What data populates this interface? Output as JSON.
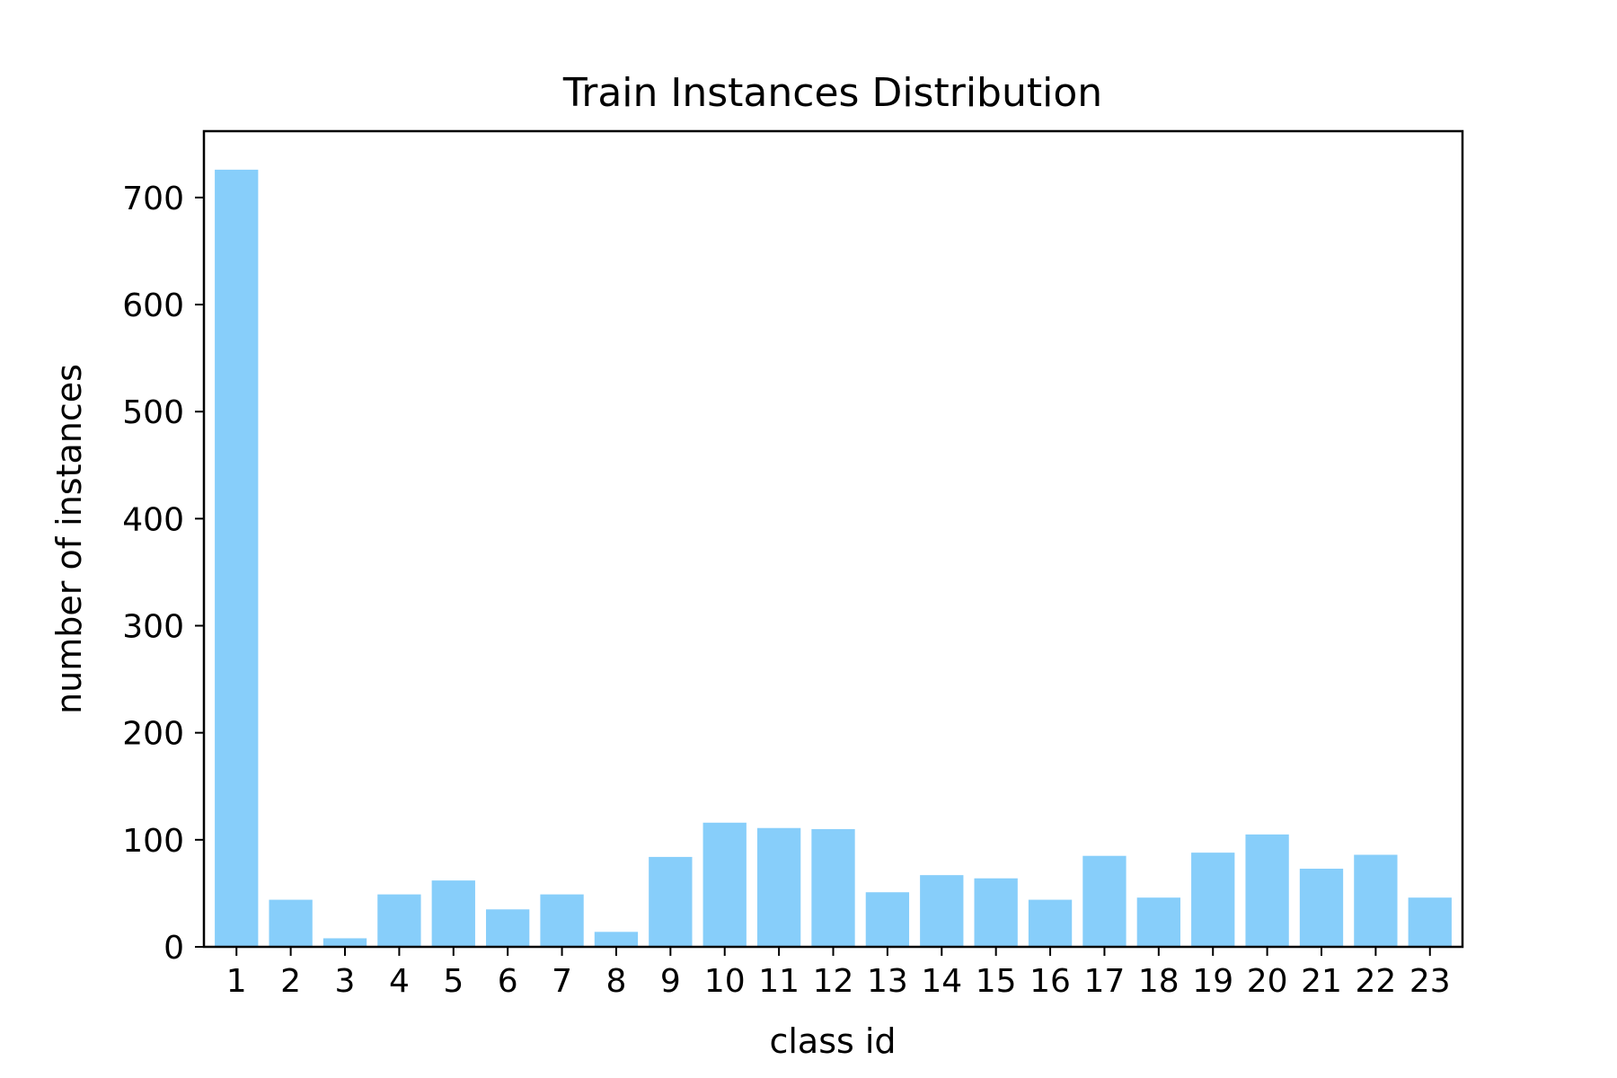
{
  "colors": {
    "bar": "#87cefa",
    "axis": "#000000",
    "background": "#ffffff"
  },
  "chart_data": {
    "type": "bar",
    "title": "Train Instances Distribution",
    "xlabel": "class id",
    "ylabel": "number of instances",
    "categories": [
      "1",
      "2",
      "3",
      "4",
      "5",
      "6",
      "7",
      "8",
      "9",
      "10",
      "11",
      "12",
      "13",
      "14",
      "15",
      "16",
      "17",
      "18",
      "19",
      "20",
      "21",
      "22",
      "23"
    ],
    "values": [
      726,
      44,
      8,
      49,
      62,
      35,
      49,
      14,
      84,
      116,
      111,
      110,
      51,
      67,
      64,
      44,
      85,
      46,
      88,
      105,
      73,
      86,
      46
    ],
    "ylim": [
      0,
      762
    ],
    "yticks": [
      0,
      100,
      200,
      300,
      400,
      500,
      600,
      700
    ],
    "grid": false,
    "legend": "none"
  }
}
